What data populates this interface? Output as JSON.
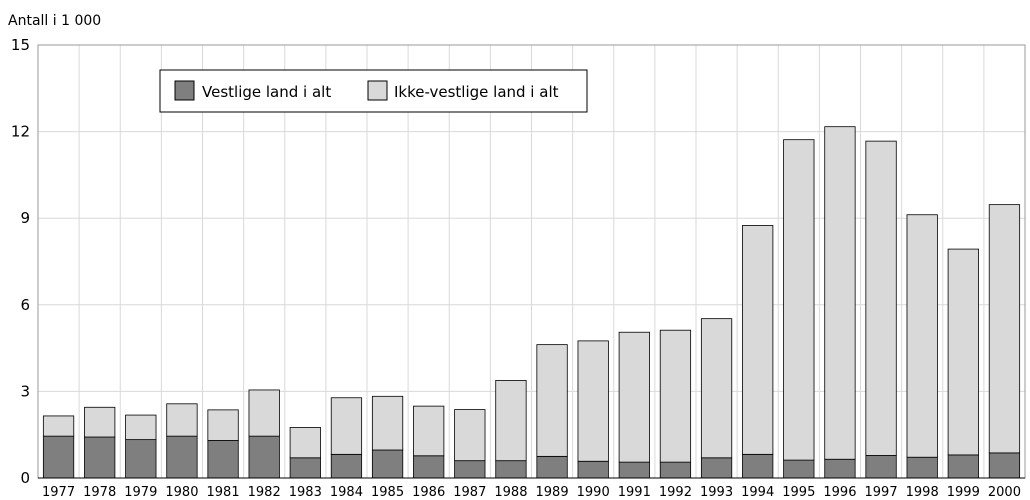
{
  "chart_data": {
    "type": "bar",
    "stacked": true,
    "ylabel": "Antall i 1 000",
    "xlabel": "",
    "title": "",
    "ylim": [
      0,
      15
    ],
    "yticks": [
      0,
      3,
      6,
      9,
      12,
      15
    ],
    "grid": true,
    "legend_position": "top-left",
    "categories": [
      "1977",
      "1978",
      "1979",
      "1980",
      "1981",
      "1982",
      "1983",
      "1984",
      "1985",
      "1986",
      "1987",
      "1988",
      "1989",
      "1990",
      "1991",
      "1992",
      "1993",
      "1994",
      "1995",
      "1996",
      "1997",
      "1998",
      "1999",
      "2000"
    ],
    "series": [
      {
        "name": "Vestlige land i alt",
        "color": "#7f7f7f",
        "values": [
          1.45,
          1.42,
          1.33,
          1.45,
          1.3,
          1.45,
          0.7,
          0.82,
          0.97,
          0.77,
          0.6,
          0.6,
          0.75,
          0.58,
          0.55,
          0.55,
          0.7,
          0.82,
          0.62,
          0.65,
          0.78,
          0.72,
          0.8,
          0.87
        ]
      },
      {
        "name": "Ikke-vestlige land i alt",
        "color": "#d9d9d9",
        "values": [
          0.7,
          1.03,
          0.85,
          1.12,
          1.06,
          1.6,
          1.05,
          1.96,
          1.86,
          1.72,
          1.77,
          2.78,
          3.87,
          4.17,
          4.5,
          4.57,
          4.82,
          7.93,
          11.1,
          11.52,
          10.89,
          8.4,
          7.13,
          8.6
        ]
      }
    ]
  }
}
